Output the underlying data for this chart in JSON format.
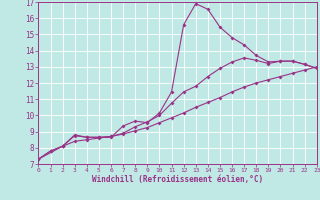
{
  "xlabel": "Windchill (Refroidissement éolien,°C)",
  "bg_color": "#c0e8e4",
  "line_color": "#993388",
  "grid_color": "#a8d8d4",
  "spine_color": "#993388",
  "xlim": [
    0,
    23
  ],
  "ylim": [
    7,
    17
  ],
  "xticks": [
    0,
    1,
    2,
    3,
    4,
    5,
    6,
    7,
    8,
    9,
    10,
    11,
    12,
    13,
    14,
    15,
    16,
    17,
    18,
    19,
    20,
    21,
    22,
    23
  ],
  "yticks": [
    7,
    8,
    9,
    10,
    11,
    12,
    13,
    14,
    15,
    16,
    17
  ],
  "lines": [
    {
      "x": [
        0,
        1,
        2,
        3,
        4,
        5,
        6,
        7,
        8,
        9,
        10,
        11,
        12,
        13,
        14,
        15,
        16,
        17,
        18,
        19,
        20,
        21,
        22,
        23
      ],
      "y": [
        7.3,
        7.8,
        8.1,
        8.4,
        8.5,
        8.6,
        8.7,
        8.85,
        9.05,
        9.25,
        9.55,
        9.85,
        10.15,
        10.5,
        10.8,
        11.1,
        11.45,
        11.75,
        12.0,
        12.2,
        12.4,
        12.6,
        12.8,
        13.0
      ]
    },
    {
      "x": [
        0,
        2,
        3,
        4,
        5,
        6,
        7,
        8,
        9,
        10,
        11,
        12,
        13,
        14,
        15,
        16,
        17,
        18,
        19,
        20,
        21,
        22,
        23
      ],
      "y": [
        7.3,
        8.1,
        8.75,
        8.65,
        8.65,
        8.7,
        8.9,
        9.3,
        9.6,
        10.0,
        10.75,
        11.45,
        11.8,
        12.4,
        12.9,
        13.3,
        13.55,
        13.4,
        13.2,
        13.35,
        13.35,
        13.15,
        12.9
      ]
    },
    {
      "x": [
        0,
        1,
        2,
        3,
        4,
        5,
        6,
        7,
        8,
        9,
        10,
        11,
        12,
        13,
        14,
        15,
        16,
        17,
        18,
        19,
        20,
        21,
        22,
        23
      ],
      "y": [
        7.3,
        7.8,
        8.1,
        8.8,
        8.65,
        8.65,
        8.65,
        9.35,
        9.65,
        9.55,
        10.15,
        11.45,
        15.6,
        16.9,
        16.55,
        15.45,
        14.8,
        14.35,
        13.7,
        13.3,
        13.35,
        13.35,
        13.15,
        12.9
      ]
    }
  ]
}
